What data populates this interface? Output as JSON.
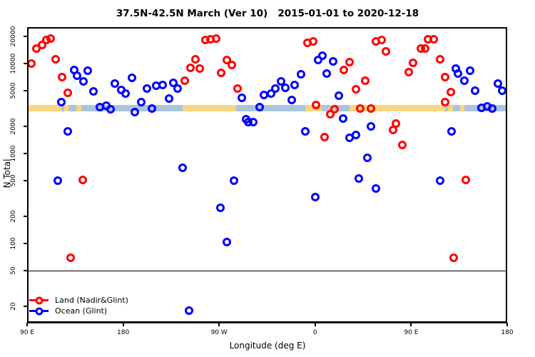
{
  "title": "37.5N-42.5N March (Ver 10)   2015-01-01 to 2020-12-18",
  "axes": {
    "x": {
      "label": "Longitude (deg E)",
      "range": [
        90,
        540
      ],
      "ticks": [
        {
          "lon": 90,
          "label": "90 E"
        },
        {
          "lon": 180,
          "label": "180"
        },
        {
          "lon": 270,
          "label": "90 W"
        },
        {
          "lon": 360,
          "label": "0"
        },
        {
          "lon": 450,
          "label": "90 E"
        },
        {
          "lon": 540,
          "label": "180"
        }
      ]
    },
    "y": {
      "label": "N Total",
      "scale": "log10",
      "ticks": [
        20000,
        10000,
        5000,
        2000,
        1000,
        500,
        200,
        100,
        50,
        20
      ]
    }
  },
  "reference_line": {
    "value": 50
  },
  "map_band": {
    "n_range": [
      2940,
      3470
    ],
    "ocean_color": "#a9c4de",
    "land_color": "#fbd681",
    "land_segments_lon": [
      [
        90,
        122
      ],
      [
        124.5,
        129
      ],
      [
        136,
        141
      ],
      [
        236,
        286
      ],
      [
        351,
        366
      ],
      [
        374,
        378
      ],
      [
        392,
        482
      ],
      [
        484.5,
        489
      ],
      [
        496,
        500
      ]
    ]
  },
  "legend": [
    {
      "label": "Land (Nadir&Glint)",
      "color": "#ff0000"
    },
    {
      "label": "Ocean (Glint)",
      "color": "#0000ff"
    }
  ],
  "chart_data": {
    "type": "scatter",
    "title": "37.5N-42.5N March (Ver 10)   2015-01-01 to 2020-12-18",
    "xlabel": "Longitude (deg E)",
    "ylabel": "N Total",
    "xlim": [
      90,
      540
    ],
    "ylim": [
      13,
      25000
    ],
    "legend_position": "bottom-left",
    "series": [
      {
        "name": "Land (Nadir&Glint)",
        "color": "#ff0000",
        "points_lon_n": [
          [
            94,
            10000
          ],
          [
            99,
            14600
          ],
          [
            104,
            16100
          ],
          [
            108,
            18400
          ],
          [
            112,
            18900
          ],
          [
            117,
            11200
          ],
          [
            123,
            7100
          ],
          [
            128,
            4700
          ],
          [
            142,
            510
          ],
          [
            131,
            69
          ],
          [
            238,
            6400
          ],
          [
            243,
            8960
          ],
          [
            248,
            11200
          ],
          [
            252,
            8800
          ],
          [
            257,
            18400
          ],
          [
            262,
            18600
          ],
          [
            267,
            18900
          ],
          [
            272,
            7900
          ],
          [
            277,
            10900
          ],
          [
            282,
            9600
          ],
          [
            287,
            5250
          ],
          [
            353,
            17000
          ],
          [
            358,
            17700
          ],
          [
            361,
            3460
          ],
          [
            369,
            1530
          ],
          [
            374,
            2710
          ],
          [
            378,
            3080
          ],
          [
            387,
            8500
          ],
          [
            392,
            10400
          ],
          [
            398,
            5180
          ],
          [
            402,
            3140
          ],
          [
            407,
            6400
          ],
          [
            412,
            3180
          ],
          [
            417,
            17700
          ],
          [
            422,
            18400
          ],
          [
            426,
            13700
          ],
          [
            433,
            1840
          ],
          [
            436,
            2170
          ],
          [
            442,
            1250
          ],
          [
            448,
            8000
          ],
          [
            452,
            10200
          ],
          [
            459,
            14600
          ],
          [
            463,
            14800
          ],
          [
            466,
            18600
          ],
          [
            471,
            18600
          ],
          [
            477,
            11100
          ],
          [
            482,
            7100
          ],
          [
            482,
            3700
          ],
          [
            487,
            4800
          ],
          [
            490,
            69
          ],
          [
            501,
            510
          ]
        ]
      },
      {
        "name": "Ocean (Glint)",
        "color": "#0000ff",
        "points_lon_n": [
          [
            119,
            500
          ],
          [
            122,
            3700
          ],
          [
            128,
            1760
          ],
          [
            134,
            8530
          ],
          [
            137,
            7300
          ],
          [
            143,
            6300
          ],
          [
            147,
            8330
          ],
          [
            152,
            4930
          ],
          [
            158,
            3280
          ],
          [
            164,
            3420
          ],
          [
            168,
            3090
          ],
          [
            172,
            6030
          ],
          [
            178,
            5110
          ],
          [
            182,
            4640
          ],
          [
            188,
            6940
          ],
          [
            191,
            2900
          ],
          [
            197,
            3710
          ],
          [
            202,
            5250
          ],
          [
            207,
            3180
          ],
          [
            211,
            5680
          ],
          [
            217,
            5780
          ],
          [
            223,
            4060
          ],
          [
            227,
            6140
          ],
          [
            231,
            5250
          ],
          [
            236,
            690
          ],
          [
            242,
            18
          ],
          [
            271,
            250
          ],
          [
            277,
            103
          ],
          [
            284,
            500
          ],
          [
            291,
            4180
          ],
          [
            295,
            2420
          ],
          [
            297,
            2250
          ],
          [
            302,
            2250
          ],
          [
            308,
            3300
          ],
          [
            312,
            4450
          ],
          [
            319,
            4640
          ],
          [
            323,
            5250
          ],
          [
            328,
            6300
          ],
          [
            332,
            5340
          ],
          [
            338,
            3940
          ],
          [
            341,
            5780
          ],
          [
            347,
            7560
          ],
          [
            351,
            1750
          ],
          [
            360,
            330
          ],
          [
            363,
            10900
          ],
          [
            367,
            12200
          ],
          [
            371,
            7700
          ],
          [
            377,
            10600
          ],
          [
            382,
            4370
          ],
          [
            386,
            2450
          ],
          [
            392,
            1500
          ],
          [
            398,
            1600
          ],
          [
            401,
            530
          ],
          [
            409,
            900
          ],
          [
            412,
            1990
          ],
          [
            417,
            410
          ],
          [
            477,
            500
          ],
          [
            488,
            1760
          ],
          [
            492,
            8800
          ],
          [
            494,
            7800
          ],
          [
            500,
            6450
          ],
          [
            505,
            8400
          ],
          [
            510,
            4960
          ],
          [
            516,
            3220
          ],
          [
            521,
            3340
          ],
          [
            526,
            3140
          ],
          [
            531,
            6000
          ],
          [
            535,
            4960
          ]
        ]
      }
    ]
  }
}
